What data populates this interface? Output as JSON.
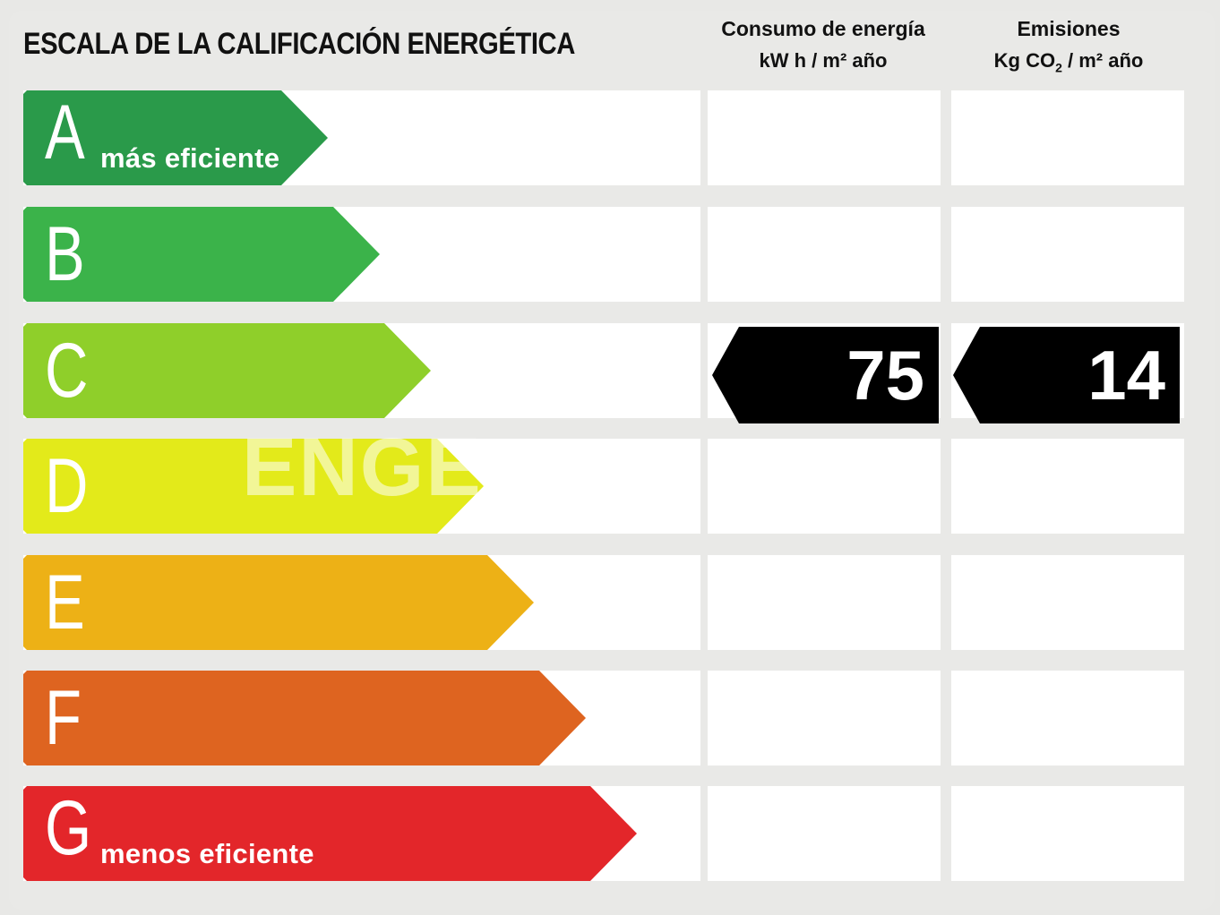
{
  "title": "ESCALA DE LA CALIFICACIÓN ENERGÉTICA",
  "columns": {
    "energy": {
      "line1": "Consumo de energía",
      "line2": "kW h / m² año"
    },
    "emissions": {
      "line1": "Emisiones",
      "line2_pre": "Kg CO",
      "line2_sub": "2",
      "line2_post": " / m² año"
    }
  },
  "ratings": [
    {
      "letter": "A",
      "sublabel": "más eficiente",
      "color": "#2a9a4a"
    },
    {
      "letter": "B",
      "sublabel": "",
      "color": "#3bb34a"
    },
    {
      "letter": "C",
      "sublabel": "",
      "color": "#8fcf2a"
    },
    {
      "letter": "D",
      "sublabel": "",
      "color": "#e3ea1a"
    },
    {
      "letter": "E",
      "sublabel": "",
      "color": "#edb116"
    },
    {
      "letter": "F",
      "sublabel": "",
      "color": "#de6420"
    },
    {
      "letter": "G",
      "sublabel": "menos eficiente",
      "color": "#e3262a"
    }
  ],
  "current": {
    "rating": "C",
    "energy_value": "75",
    "emissions_value": "14",
    "marker_color": "#000000"
  },
  "watermark": "ENGE"
}
